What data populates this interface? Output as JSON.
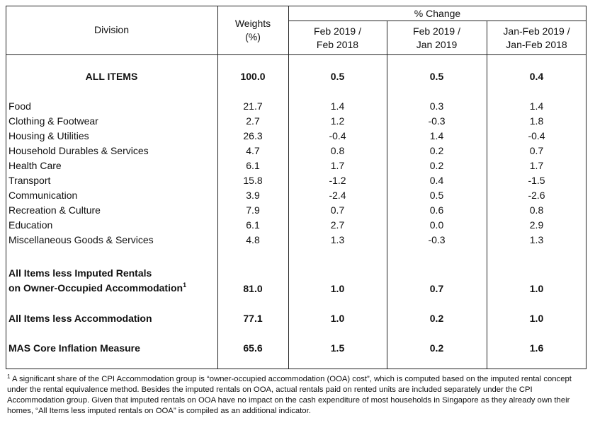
{
  "header": {
    "division": "Division",
    "weights_line1": "Weights",
    "weights_line2": "(%)",
    "pct_change": "% Change",
    "cols": [
      {
        "line1": "Feb 2019 /",
        "line2": "Feb 2018"
      },
      {
        "line1": "Feb 2019 /",
        "line2": "Jan 2019"
      },
      {
        "line1": "Jan-Feb 2019 /",
        "line2": "Jan-Feb 2018"
      }
    ]
  },
  "all_items": {
    "label": "ALL ITEMS",
    "weight": "100.0",
    "v1": "0.5",
    "v2": "0.5",
    "v3": "0.4"
  },
  "rows": [
    {
      "label": "Food",
      "weight": "21.7",
      "v1": "1.4",
      "v2": "0.3",
      "v3": "1.4"
    },
    {
      "label": "Clothing & Footwear",
      "weight": "2.7",
      "v1": "1.2",
      "v2": "-0.3",
      "v3": "1.8"
    },
    {
      "label": "Housing & Utilities",
      "weight": "26.3",
      "v1": "-0.4",
      "v2": "1.4",
      "v3": "-0.4"
    },
    {
      "label": "Household Durables & Services",
      "weight": "4.7",
      "v1": "0.8",
      "v2": "0.2",
      "v3": "0.7"
    },
    {
      "label": "Health Care",
      "weight": "6.1",
      "v1": "1.7",
      "v2": "0.2",
      "v3": "1.7"
    },
    {
      "label": "Transport",
      "weight": "15.8",
      "v1": "-1.2",
      "v2": "0.4",
      "v3": "-1.5"
    },
    {
      "label": "Communication",
      "weight": "3.9",
      "v1": "-2.4",
      "v2": "0.5",
      "v3": "-2.6"
    },
    {
      "label": "Recreation & Culture",
      "weight": "7.9",
      "v1": "0.7",
      "v2": "0.6",
      "v3": "0.8"
    },
    {
      "label": "Education",
      "weight": "6.1",
      "v1": "2.7",
      "v2": "0.0",
      "v3": "2.9"
    },
    {
      "label": "Miscellaneous Goods & Services",
      "weight": "4.8",
      "v1": "1.3",
      "v2": "-0.3",
      "v3": "1.3"
    }
  ],
  "summary": [
    {
      "label_line1": "All Items less Imputed Rentals",
      "label_line2": "on Owner-Occupied Accommodation",
      "sup": "1",
      "weight": "81.0",
      "v1": "1.0",
      "v2": "0.7",
      "v3": "1.0"
    },
    {
      "label": "All Items less Accommodation",
      "weight": "77.1",
      "v1": "1.0",
      "v2": "0.2",
      "v3": "1.0"
    },
    {
      "label": "MAS Core Inflation Measure",
      "weight": "65.6",
      "v1": "1.5",
      "v2": "0.2",
      "v3": "1.6"
    }
  ],
  "footnote": {
    "marker": "1",
    "text": "A significant share of the CPI Accommodation group is “owner-occupied accommodation (OOA) cost”, which is computed based on the imputed rental concept under the rental equivalence method. Besides the imputed rentals on OOA, actual rentals paid on rented units are included separately under the CPI Accommodation group. Given that imputed rentals on OOA have no impact on the cash expenditure of most households in Singapore as they already own their homes, “All Items less imputed rentals on OOA” is compiled as an additional indicator."
  }
}
